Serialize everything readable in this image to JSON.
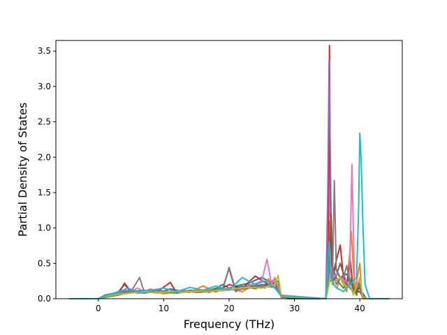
{
  "chart_data": {
    "type": "line",
    "title": "",
    "xlabel": "Frequency (THz)",
    "ylabel": "Partial Density of States",
    "xlim": [
      -6.5,
      46.5
    ],
    "ylim": [
      0,
      3.65
    ],
    "xticks": [
      {
        "value": 0,
        "label": "0"
      },
      {
        "value": 10,
        "label": "10"
      },
      {
        "value": 20,
        "label": "20"
      },
      {
        "value": 30,
        "label": "30"
      },
      {
        "value": 40,
        "label": "40"
      }
    ],
    "yticks": [
      {
        "value": 0.0,
        "label": "0.0"
      },
      {
        "value": 0.5,
        "label": "0.5"
      },
      {
        "value": 1.0,
        "label": "1.0"
      },
      {
        "value": 1.5,
        "label": "1.5"
      },
      {
        "value": 2.0,
        "label": "2.0"
      },
      {
        "value": 2.5,
        "label": "2.5"
      },
      {
        "value": 3.0,
        "label": "3.0"
      },
      {
        "value": 3.5,
        "label": "3.5"
      }
    ],
    "grid": false,
    "legend": false,
    "series": [
      {
        "color": "#1f77b4",
        "x": [
          -4.5,
          0,
          1,
          3,
          4,
          5,
          7,
          9,
          11,
          13,
          15,
          17,
          19,
          20,
          21,
          23,
          25,
          27,
          28,
          29,
          34.8,
          35.2,
          35.5,
          35.8,
          36.2,
          37,
          38,
          38.8,
          39.5,
          40,
          40.3,
          41,
          44.5
        ],
        "y": [
          0,
          0,
          0.05,
          0.09,
          0.2,
          0.1,
          0.12,
          0.08,
          0.14,
          0.1,
          0.12,
          0.09,
          0.2,
          0.15,
          0.18,
          0.22,
          0.3,
          0.2,
          0.05,
          0,
          0,
          0.3,
          0.95,
          0.2,
          0.45,
          0.3,
          0.35,
          0.2,
          0.05,
          0.3,
          0.1,
          0,
          0
        ]
      },
      {
        "color": "#ff7f0e",
        "x": [
          -4.5,
          0,
          1,
          3,
          4,
          6,
          8,
          10,
          12,
          14,
          16,
          18,
          20,
          22,
          24,
          25.5,
          26,
          27,
          28,
          34.8,
          35.2,
          35.4,
          35.7,
          36,
          36.5,
          37,
          38,
          38.7,
          39.2,
          40,
          40.3,
          41,
          44.5
        ],
        "y": [
          0,
          0,
          0.03,
          0.08,
          0.1,
          0.09,
          0.11,
          0.07,
          0.1,
          0.09,
          0.18,
          0.1,
          0.15,
          0.1,
          0.2,
          0.15,
          0.28,
          0.15,
          0.05,
          0,
          0.2,
          1.1,
          0.3,
          0.2,
          0.15,
          0.3,
          0.1,
          0.95,
          0.1,
          0.5,
          0.05,
          0,
          0
        ]
      },
      {
        "color": "#2ca02c",
        "x": [
          -4.5,
          0,
          1,
          2.5,
          4,
          6,
          8,
          10,
          12,
          14,
          16,
          18,
          20,
          22,
          24,
          26,
          27.5,
          28,
          34.8,
          35.3,
          35.6,
          36,
          36.6,
          37.5,
          38.5,
          39.5,
          40,
          40.5,
          44.5
        ],
        "y": [
          0,
          0,
          0.04,
          0.07,
          0.12,
          0.08,
          0.1,
          0.09,
          0.08,
          0.12,
          0.1,
          0.15,
          0.12,
          0.18,
          0.14,
          0.2,
          0.25,
          0.04,
          0,
          0.5,
          0.25,
          0.4,
          0.25,
          0.15,
          0.3,
          0.05,
          0.2,
          0,
          0
        ]
      },
      {
        "color": "#d62728",
        "x": [
          -4.5,
          0,
          1,
          3,
          4,
          5,
          7,
          9,
          11,
          12,
          14,
          16,
          18,
          20,
          22,
          24,
          26,
          27,
          28,
          34.8,
          35.2,
          35.35,
          35.5,
          35.8,
          36.3,
          37,
          37.5,
          38,
          38.5,
          39,
          40,
          40.4,
          41,
          44.5
        ],
        "y": [
          0,
          0,
          0.02,
          0.06,
          0.22,
          0.1,
          0.08,
          0.1,
          0.23,
          0.08,
          0.1,
          0.12,
          0.1,
          0.2,
          0.15,
          0.32,
          0.2,
          0.28,
          0.02,
          0,
          0.8,
          3.58,
          1.2,
          0.3,
          0.5,
          0.76,
          0.3,
          0.2,
          0.57,
          0.1,
          0.1,
          0.03,
          0,
          0
        ]
      },
      {
        "color": "#9467bd",
        "x": [
          -4.5,
          0,
          1,
          3,
          5,
          7,
          9,
          11,
          13,
          15,
          17,
          19,
          21,
          23,
          25,
          27,
          28,
          34.8,
          35.1,
          35.3,
          35.6,
          35.9,
          36.4,
          37,
          38,
          39,
          40,
          40.5,
          44.5
        ],
        "y": [
          0,
          0,
          0.03,
          0.1,
          0.12,
          0.08,
          0.11,
          0.1,
          0.09,
          0.12,
          0.11,
          0.14,
          0.12,
          0.15,
          0.18,
          0.16,
          0.03,
          0,
          1.5,
          3.37,
          1.2,
          0.4,
          0.2,
          0.3,
          0.2,
          0.1,
          0.15,
          0,
          0
        ]
      },
      {
        "color": "#8c564b",
        "x": [
          -4.5,
          0,
          1,
          3,
          5,
          7,
          9,
          11,
          13,
          15,
          17,
          19,
          20,
          21,
          23,
          25,
          27,
          28,
          34.8,
          35.3,
          35.6,
          35.9,
          36.3,
          37,
          38,
          38.6,
          39,
          40,
          40.5,
          44.5
        ],
        "y": [
          0,
          0,
          0.02,
          0.05,
          0.09,
          0.1,
          0.08,
          0.1,
          0.12,
          0.09,
          0.1,
          0.12,
          0.44,
          0.12,
          0.16,
          0.2,
          0.2,
          0.03,
          0,
          0.4,
          1.2,
          0.25,
          0.3,
          0.5,
          0.2,
          0.5,
          0.1,
          0.15,
          0,
          0
        ]
      },
      {
        "color": "#e377c2",
        "x": [
          -4.5,
          0,
          1,
          3,
          5,
          6,
          7,
          8,
          9,
          11,
          13,
          15,
          17,
          19,
          21,
          23,
          25,
          25.8,
          26.5,
          27,
          28,
          34.8,
          35.3,
          35.6,
          36,
          36.5,
          37,
          37.8,
          38.4,
          38.8,
          39.2,
          40,
          40.3,
          41,
          44.5
        ],
        "y": [
          0,
          0,
          0.03,
          0.07,
          0.1,
          0.15,
          0.1,
          0.14,
          0.09,
          0.1,
          0.12,
          0.1,
          0.13,
          0.11,
          0.14,
          0.18,
          0.25,
          0.56,
          0.2,
          0.3,
          0.04,
          0,
          0.2,
          0.45,
          0.3,
          0.35,
          0.3,
          0.25,
          0.2,
          1.9,
          0.2,
          0.25,
          0.05,
          0,
          0
        ]
      },
      {
        "color": "#7f7f7f",
        "x": [
          -4.5,
          0,
          1,
          3,
          5,
          6.3,
          7,
          9,
          11,
          13,
          15,
          17,
          19,
          20,
          21,
          23,
          25,
          27,
          28,
          34.8,
          35.4,
          35.8,
          36.1,
          36.4,
          37,
          37.5,
          38,
          38.5,
          39,
          40,
          40.5,
          44.5
        ],
        "y": [
          0,
          0,
          0.02,
          0.08,
          0.1,
          0.3,
          0.1,
          0.12,
          0.1,
          0.1,
          0.12,
          0.11,
          0.15,
          0.42,
          0.1,
          0.2,
          0.15,
          0.2,
          0.03,
          0,
          0.5,
          0.2,
          1.67,
          0.4,
          0.3,
          0.3,
          0.47,
          0.2,
          0.1,
          0.2,
          0,
          0
        ]
      },
      {
        "color": "#bcbd22",
        "x": [
          -4.5,
          0,
          1,
          3,
          5,
          7,
          9,
          11,
          13,
          15,
          17,
          19,
          21,
          23,
          25,
          27,
          27.5,
          28,
          34.8,
          35.5,
          35.9,
          36.3,
          37,
          38,
          38.6,
          39,
          40,
          40.5,
          44.5
        ],
        "y": [
          0,
          0,
          0.03,
          0.06,
          0.08,
          0.1,
          0.08,
          0.1,
          0.09,
          0.11,
          0.1,
          0.12,
          0.14,
          0.16,
          0.15,
          0.2,
          0.33,
          0.03,
          0,
          0.3,
          0.2,
          0.25,
          0.3,
          0.15,
          0.2,
          0.05,
          0.3,
          0,
          0
        ]
      },
      {
        "color": "#17becf",
        "x": [
          -4.5,
          0,
          1,
          3,
          4.5,
          6,
          8,
          10,
          12,
          14,
          16,
          18,
          20,
          22,
          24,
          25.5,
          27,
          28,
          34.8,
          35.3,
          35.6,
          36,
          36.5,
          37.5,
          38.5,
          39.5,
          39.8,
          40,
          40.2,
          40.5,
          40.8,
          41.5,
          44.5
        ],
        "y": [
          0,
          0,
          0.04,
          0.09,
          0.15,
          0.1,
          0.12,
          0.15,
          0.1,
          0.16,
          0.12,
          0.18,
          0.12,
          0.3,
          0.2,
          0.25,
          0.15,
          0.04,
          0,
          0.8,
          0.3,
          0.2,
          0.15,
          0.1,
          0.2,
          0.3,
          1.2,
          2.34,
          2.0,
          1.0,
          0.2,
          0,
          0
        ]
      }
    ]
  }
}
